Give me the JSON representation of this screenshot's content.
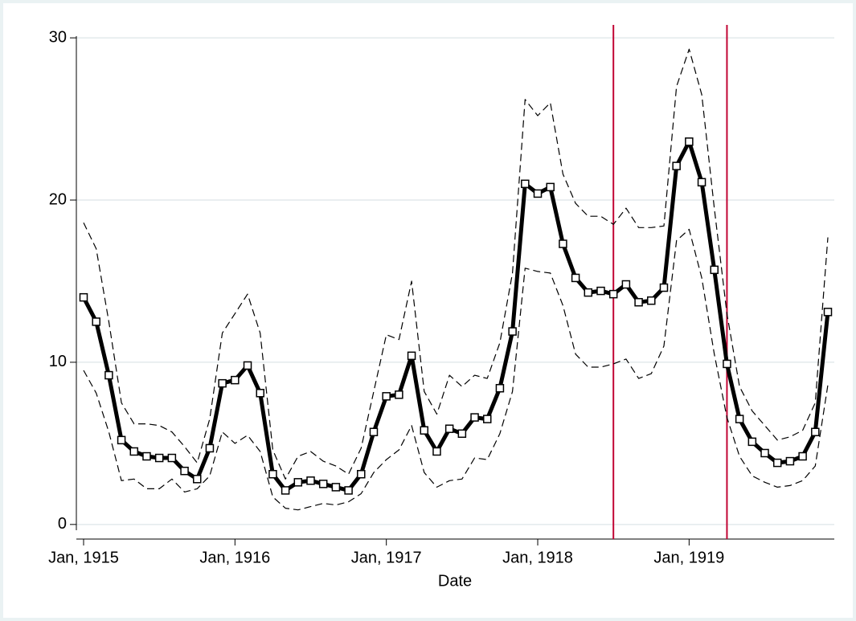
{
  "chart_data": {
    "type": "line",
    "x_label": "Date",
    "x": [
      "1915-01",
      "1915-02",
      "1915-03",
      "1915-04",
      "1915-05",
      "1915-06",
      "1915-07",
      "1915-08",
      "1915-09",
      "1915-10",
      "1915-11",
      "1915-12",
      "1916-01",
      "1916-02",
      "1916-03",
      "1916-04",
      "1916-05",
      "1916-06",
      "1916-07",
      "1916-08",
      "1916-09",
      "1916-10",
      "1916-11",
      "1916-12",
      "1917-01",
      "1917-02",
      "1917-03",
      "1917-04",
      "1917-05",
      "1917-06",
      "1917-07",
      "1917-08",
      "1917-09",
      "1917-10",
      "1917-11",
      "1917-12",
      "1918-01",
      "1918-02",
      "1918-03",
      "1918-04",
      "1918-05",
      "1918-06",
      "1918-07",
      "1918-08",
      "1918-09",
      "1918-10",
      "1918-11",
      "1918-12",
      "1919-01",
      "1919-02",
      "1919-03",
      "1919-04",
      "1919-05",
      "1919-06",
      "1919-07",
      "1919-08",
      "1919-09",
      "1919-10",
      "1919-11",
      "1919-12"
    ],
    "series": [
      {
        "color": "#000000",
        "style": "solid",
        "marker": "square",
        "values": [
          14.0,
          12.5,
          9.2,
          5.2,
          4.5,
          4.2,
          4.1,
          4.1,
          3.3,
          2.8,
          4.7,
          8.7,
          8.9,
          9.8,
          8.1,
          3.1,
          2.1,
          2.6,
          2.7,
          2.5,
          2.3,
          2.1,
          3.1,
          5.7,
          7.9,
          8.0,
          10.4,
          5.8,
          4.5,
          5.9,
          5.6,
          6.6,
          6.5,
          8.4,
          11.9,
          21.0,
          20.4,
          20.8,
          17.3,
          15.2,
          14.3,
          14.4,
          14.2,
          14.8,
          13.7,
          13.8,
          14.6,
          22.1,
          23.6,
          21.1,
          15.7,
          9.9,
          6.5,
          5.1,
          4.4,
          3.8,
          3.9,
          4.2,
          5.7,
          13.1
        ]
      },
      {
        "color": "#000000",
        "style": "dashed",
        "values": [
          18.6,
          17.0,
          12.5,
          7.5,
          6.2,
          6.2,
          6.1,
          5.7,
          4.8,
          3.8,
          6.5,
          11.8,
          13.0,
          14.2,
          11.8,
          4.6,
          2.8,
          4.2,
          4.5,
          3.9,
          3.6,
          3.1,
          4.7,
          8.2,
          11.7,
          11.4,
          15.0,
          8.2,
          6.8,
          9.2,
          8.5,
          9.2,
          9.0,
          11.2,
          15.5,
          26.2,
          25.2,
          26.0,
          21.6,
          19.8,
          19.0,
          19.0,
          18.5,
          19.5,
          18.3,
          18.3,
          18.4,
          27.0,
          29.3,
          26.5,
          19.5,
          13.0,
          8.5,
          7.0,
          6.1,
          5.2,
          5.4,
          5.8,
          7.5,
          17.7
        ]
      },
      {
        "color": "#000000",
        "style": "dashed",
        "values": [
          9.5,
          8.1,
          5.7,
          2.7,
          2.8,
          2.2,
          2.2,
          2.8,
          2.0,
          2.2,
          3.0,
          5.7,
          5.0,
          5.5,
          4.5,
          1.7,
          1.0,
          0.9,
          1.1,
          1.3,
          1.2,
          1.4,
          1.9,
          3.2,
          4.0,
          4.6,
          6.1,
          3.2,
          2.3,
          2.7,
          2.8,
          4.1,
          4.0,
          5.6,
          8.2,
          15.8,
          15.6,
          15.5,
          13.5,
          10.5,
          9.7,
          9.7,
          9.9,
          10.2,
          9.0,
          9.3,
          11.0,
          17.5,
          18.2,
          15.2,
          10.5,
          6.6,
          4.2,
          3.0,
          2.6,
          2.3,
          2.4,
          2.7,
          3.6,
          8.6
        ]
      }
    ],
    "vlines": [
      {
        "value": "1918-07",
        "color": "#c10534"
      },
      {
        "value": "1919-04",
        "color": "#c10534"
      }
    ],
    "xlim": [
      "1915-01",
      "1919-12"
    ],
    "xticks": [
      {
        "value": "1915-01",
        "label": "Jan, 1915"
      },
      {
        "value": "1916-01",
        "label": "Jan, 1916"
      },
      {
        "value": "1917-01",
        "label": "Jan, 1917"
      },
      {
        "value": "1918-01",
        "label": "Jan, 1918"
      },
      {
        "value": "1919-01",
        "label": "Jan, 1919"
      }
    ],
    "ylim": [
      -0.9,
      30.6
    ],
    "yticks": [
      0,
      10,
      20,
      30
    ],
    "grid": true
  }
}
